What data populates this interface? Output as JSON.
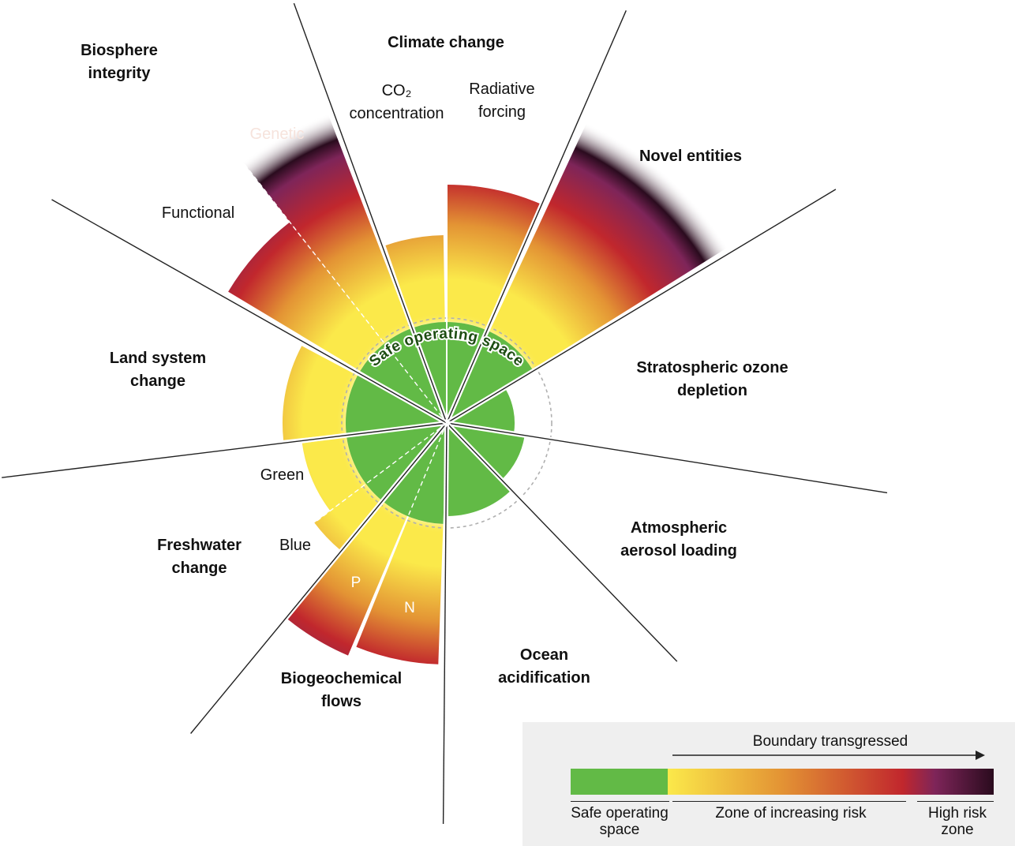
{
  "colors": {
    "safe": "#62ba46",
    "yellow": "#fbe94a",
    "orange": "#e39334",
    "red": "#c1272d",
    "purple": "#7e2559",
    "dark": "#2a0b1e",
    "outline": "#b0b0b0",
    "legend_bg": "#efefef"
  },
  "safe_space_label": "Safe operating space",
  "boundaries": {
    "climate": {
      "title": "Climate change",
      "co2": "CO₂\nconcentration",
      "radiative": "Radiative\nforcing"
    },
    "novel": {
      "title": "Novel entities"
    },
    "ozone": {
      "title": "Stratospheric ozone\ndepletion"
    },
    "aerosol": {
      "title": "Atmospheric\naerosol loading"
    },
    "ocean": {
      "title": "Ocean\nacidification"
    },
    "biogeo": {
      "title": "Biogeochemical\nflows",
      "p": "P",
      "n": "N"
    },
    "freshwater": {
      "title": "Freshwater\nchange",
      "green": "Green",
      "blue": "Blue"
    },
    "land": {
      "title": "Land system\nchange"
    },
    "biosphere": {
      "title": "Biosphere\nintegrity",
      "genetic": "Genetic",
      "functional": "Functional"
    }
  },
  "legend": {
    "header": "Boundary transgressed",
    "safe": "Safe operating\nspace",
    "risk": "Zone of increasing risk",
    "high": "High risk\nzone"
  }
}
